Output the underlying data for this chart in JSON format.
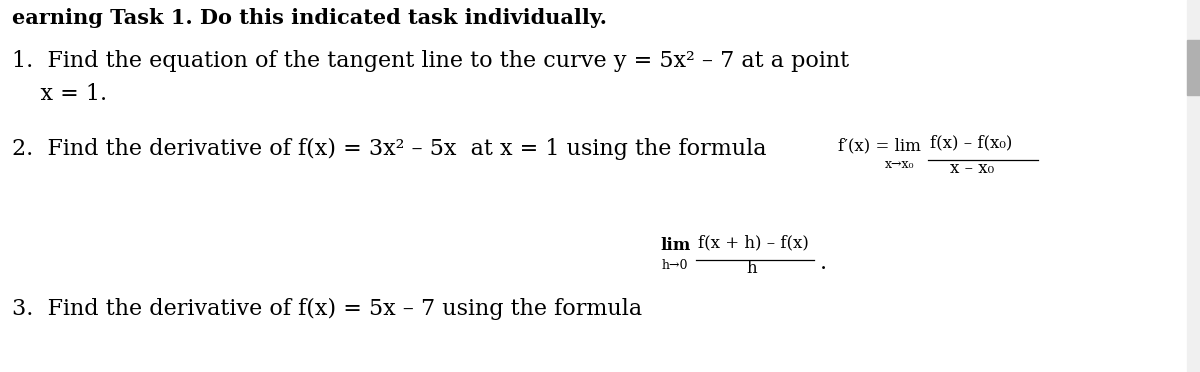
{
  "bg_color": "#ffffff",
  "header_text": "earning Task 1. Do this indicated task individually.",
  "item1_line1": "1.  Find the equation of the tangent line to the curve y = 5x² – 7 at a point",
  "item1_line2": "    x = 1.",
  "item2_main": "2.  Find the derivative of f(x) = 3x² – 5x  at x = 1 using the formula ",
  "item2_fprime": "f′(x) = lim",
  "item2_sub": "x→x₀",
  "item2_num": "f(x) – f(x₀)",
  "item2_den": "x – x₀",
  "item3_main": "3.  Find the derivative of f(x) = 5x – 7 using the formula",
  "item3_lim": "lim",
  "item3_sub": "h→0",
  "item3_num": "f(x + h) – f(x)",
  "item3_den": "h",
  "dot": ".",
  "text_color": "#000000",
  "fig_width": 12.0,
  "fig_height": 3.72,
  "dpi": 100
}
